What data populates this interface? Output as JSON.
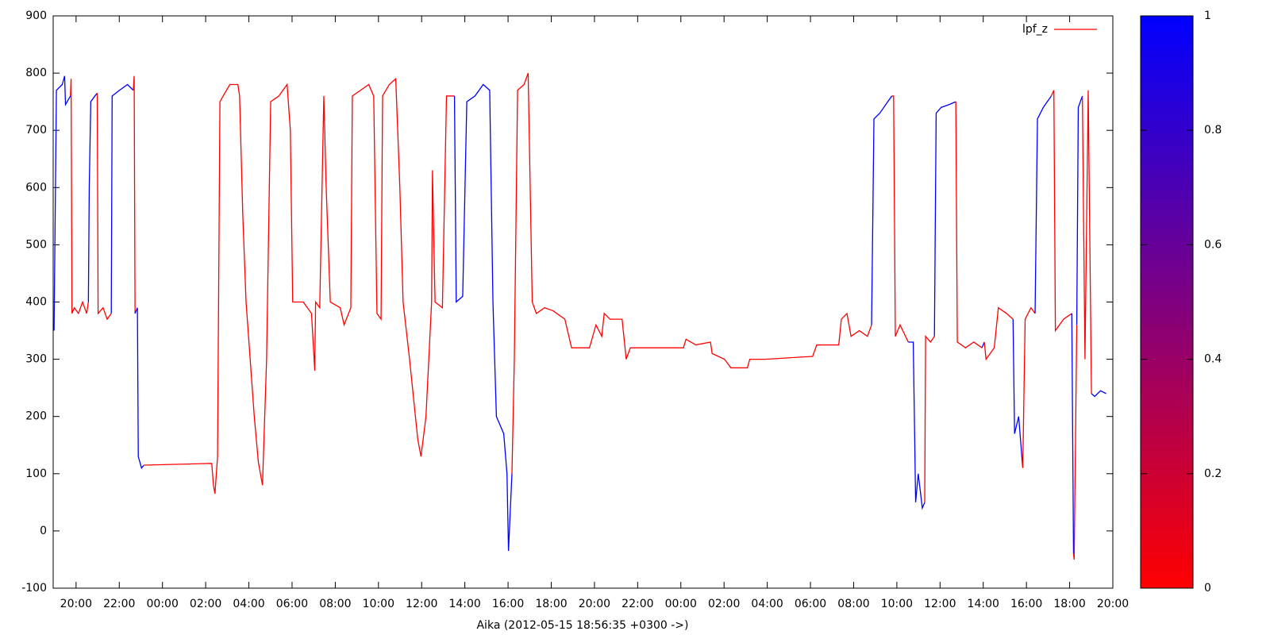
{
  "chart_data": {
    "type": "line",
    "xlabel": "Aika (2012-05-15 18:56:35 +0300 ->)",
    "xlim": [
      18.94,
      68
    ],
    "xticks": [
      {
        "value": 20,
        "label": "20:00"
      },
      {
        "value": 22,
        "label": "22:00"
      },
      {
        "value": 24,
        "label": "00:00"
      },
      {
        "value": 26,
        "label": "02:00"
      },
      {
        "value": 28,
        "label": "04:00"
      },
      {
        "value": 30,
        "label": "06:00"
      },
      {
        "value": 32,
        "label": "08:00"
      },
      {
        "value": 34,
        "label": "10:00"
      },
      {
        "value": 36,
        "label": "12:00"
      },
      {
        "value": 38,
        "label": "14:00"
      },
      {
        "value": 40,
        "label": "16:00"
      },
      {
        "value": 42,
        "label": "18:00"
      },
      {
        "value": 44,
        "label": "20:00"
      },
      {
        "value": 46,
        "label": "22:00"
      },
      {
        "value": 48,
        "label": "00:00"
      },
      {
        "value": 50,
        "label": "02:00"
      },
      {
        "value": 52,
        "label": "04:00"
      },
      {
        "value": 54,
        "label": "06:00"
      },
      {
        "value": 56,
        "label": "08:00"
      },
      {
        "value": 58,
        "label": "10:00"
      },
      {
        "value": 60,
        "label": "12:00"
      },
      {
        "value": 62,
        "label": "14:00"
      },
      {
        "value": 64,
        "label": "16:00"
      },
      {
        "value": 66,
        "label": "18:00"
      },
      {
        "value": 68,
        "label": "20:00"
      }
    ],
    "ylim": [
      -100,
      900
    ],
    "yticks": [
      -100,
      0,
      100,
      200,
      300,
      400,
      500,
      600,
      700,
      800,
      900
    ],
    "cblim": [
      0,
      1
    ],
    "cbticks": [
      0,
      0.2,
      0.4,
      0.6,
      0.8,
      1
    ],
    "palette": [
      "#ff0000",
      "#0000ff"
    ],
    "legend": "top-right",
    "series": [
      {
        "name": "lpf_z",
        "color": "#ff0000",
        "x": [
          18.98,
          19.09,
          19.36,
          19.47,
          19.51,
          19.74,
          19.77,
          19.81,
          19.92,
          20.11,
          20.3,
          20.49,
          20.57,
          20.61,
          20.68,
          20.87,
          20.98,
          21.02,
          21.25,
          21.44,
          21.63,
          21.67,
          22.01,
          22.38,
          22.65,
          22.69,
          22.73,
          22.84,
          22.88,
          23.03,
          23.14,
          26.28,
          26.36,
          26.43,
          26.55,
          26.66,
          26.81,
          27.12,
          27.49,
          27.57,
          27.72,
          27.87,
          28.06,
          28.25,
          28.44,
          28.63,
          28.82,
          29.01,
          29.39,
          29.77,
          29.92,
          30.03,
          30.52,
          30.9,
          31.05,
          31.09,
          31.28,
          31.47,
          31.58,
          31.77,
          32.23,
          32.41,
          32.72,
          32.79,
          33.17,
          33.55,
          33.78,
          33.93,
          34.12,
          34.19,
          34.5,
          34.8,
          34.99,
          35.14,
          35.44,
          35.63,
          35.82,
          35.97,
          36.2,
          36.46,
          36.5,
          36.62,
          36.96,
          37.15,
          37.52,
          37.6,
          37.9,
          38.09,
          38.47,
          38.85,
          39.15,
          39.3,
          39.46,
          39.8,
          39.95,
          40.02,
          40.18,
          40.29,
          40.44,
          40.74,
          40.93,
          41.12,
          41.31,
          41.69,
          42.07,
          42.63,
          42.94,
          43.77,
          44.07,
          44.34,
          44.45,
          44.72,
          45.28,
          45.47,
          45.66,
          48.12,
          48.24,
          48.69,
          49.37,
          49.45,
          50.02,
          50.32,
          51.08,
          51.19,
          51.91,
          54.1,
          54.29,
          55.31,
          55.43,
          55.69,
          55.88,
          56.26,
          56.64,
          56.83,
          56.94,
          57.21,
          57.58,
          57.77,
          57.85,
          57.93,
          58.15,
          58.53,
          58.76,
          58.87,
          58.99,
          59.18,
          59.29,
          59.33,
          59.56,
          59.74,
          59.82,
          60.05,
          60.42,
          60.73,
          60.8,
          61.18,
          61.56,
          61.94,
          62.05,
          62.13,
          62.51,
          62.7,
          63.08,
          63.38,
          63.45,
          63.64,
          63.83,
          63.94,
          64.21,
          64.4,
          64.51,
          64.78,
          65.15,
          65.27,
          65.34,
          65.72,
          66.1,
          66.18,
          66.21,
          66.33,
          66.4,
          66.59,
          66.71,
          66.86,
          67.01,
          67.16,
          67.43,
          67.69
        ],
        "values": [
          350,
          770,
          780,
          795,
          745,
          760,
          790,
          380,
          390,
          380,
          400,
          380,
          400,
          600,
          750,
          760,
          765,
          380,
          390,
          370,
          380,
          760,
          770,
          780,
          770,
          795,
          380,
          390,
          130,
          110,
          115,
          118,
          80,
          65,
          130,
          750,
          760,
          780,
          780,
          760,
          550,
          400,
          300,
          200,
          120,
          80,
          300,
          750,
          760,
          780,
          700,
          400,
          400,
          380,
          280,
          400,
          390,
          760,
          600,
          400,
          390,
          360,
          390,
          760,
          770,
          780,
          760,
          380,
          370,
          760,
          780,
          790,
          600,
          400,
          300,
          230,
          160,
          130,
          200,
          400,
          630,
          400,
          390,
          760,
          760,
          400,
          410,
          750,
          760,
          780,
          770,
          400,
          200,
          170,
          100,
          -35,
          100,
          300,
          770,
          780,
          800,
          400,
          380,
          390,
          385,
          370,
          320,
          320,
          360,
          340,
          380,
          370,
          370,
          300,
          320,
          320,
          335,
          325,
          330,
          310,
          300,
          285,
          285,
          300,
          300,
          305,
          325,
          325,
          370,
          380,
          340,
          350,
          340,
          360,
          720,
          730,
          750,
          760,
          760,
          340,
          360,
          330,
          330,
          50,
          100,
          40,
          50,
          340,
          330,
          340,
          730,
          740,
          745,
          750,
          330,
          320,
          330,
          320,
          330,
          300,
          320,
          390,
          380,
          370,
          170,
          200,
          110,
          370,
          390,
          380,
          720,
          740,
          760,
          770,
          350,
          370,
          380,
          -40,
          -50,
          360,
          740,
          760,
          300,
          770,
          240,
          235,
          245,
          240
        ],
        "z": [
          1,
          1,
          1,
          1,
          1,
          1,
          0,
          0,
          0,
          0,
          0,
          0,
          0,
          1,
          1,
          1,
          1,
          0,
          0,
          0,
          0,
          1,
          1,
          1,
          1,
          0,
          0,
          1,
          1,
          1,
          1,
          0,
          0,
          0,
          0,
          0,
          0,
          0,
          0,
          0,
          0,
          0,
          0,
          0,
          0,
          0,
          0,
          0,
          0,
          0,
          0,
          0,
          0,
          0,
          0,
          0,
          0,
          0,
          0,
          0,
          0,
          0,
          0,
          0,
          0,
          0,
          0,
          0,
          0,
          0,
          0,
          0,
          0,
          0,
          0,
          0,
          0,
          0,
          0,
          0,
          0,
          0,
          0,
          0,
          0,
          1,
          1,
          1,
          1,
          1,
          1,
          1,
          1,
          1,
          1,
          1,
          1,
          0,
          0,
          0,
          0,
          0,
          0,
          0,
          0,
          0,
          0,
          0,
          0,
          0,
          0,
          0,
          0,
          0,
          0,
          0,
          0,
          0,
          0,
          0,
          0,
          0,
          0,
          0,
          0,
          0,
          0,
          0,
          0,
          0,
          0,
          0,
          0,
          0,
          1,
          1,
          1,
          1,
          0,
          0,
          0,
          0,
          1,
          1,
          1,
          1,
          1,
          0,
          0,
          0,
          1,
          1,
          1,
          1,
          0,
          0,
          0,
          0,
          1,
          0,
          0,
          0,
          0,
          0,
          1,
          1,
          1,
          0,
          0,
          0,
          1,
          1,
          1,
          0,
          0,
          0,
          0,
          1,
          0,
          0,
          1,
          1,
          0,
          0,
          0,
          1,
          1,
          1
        ]
      }
    ]
  }
}
